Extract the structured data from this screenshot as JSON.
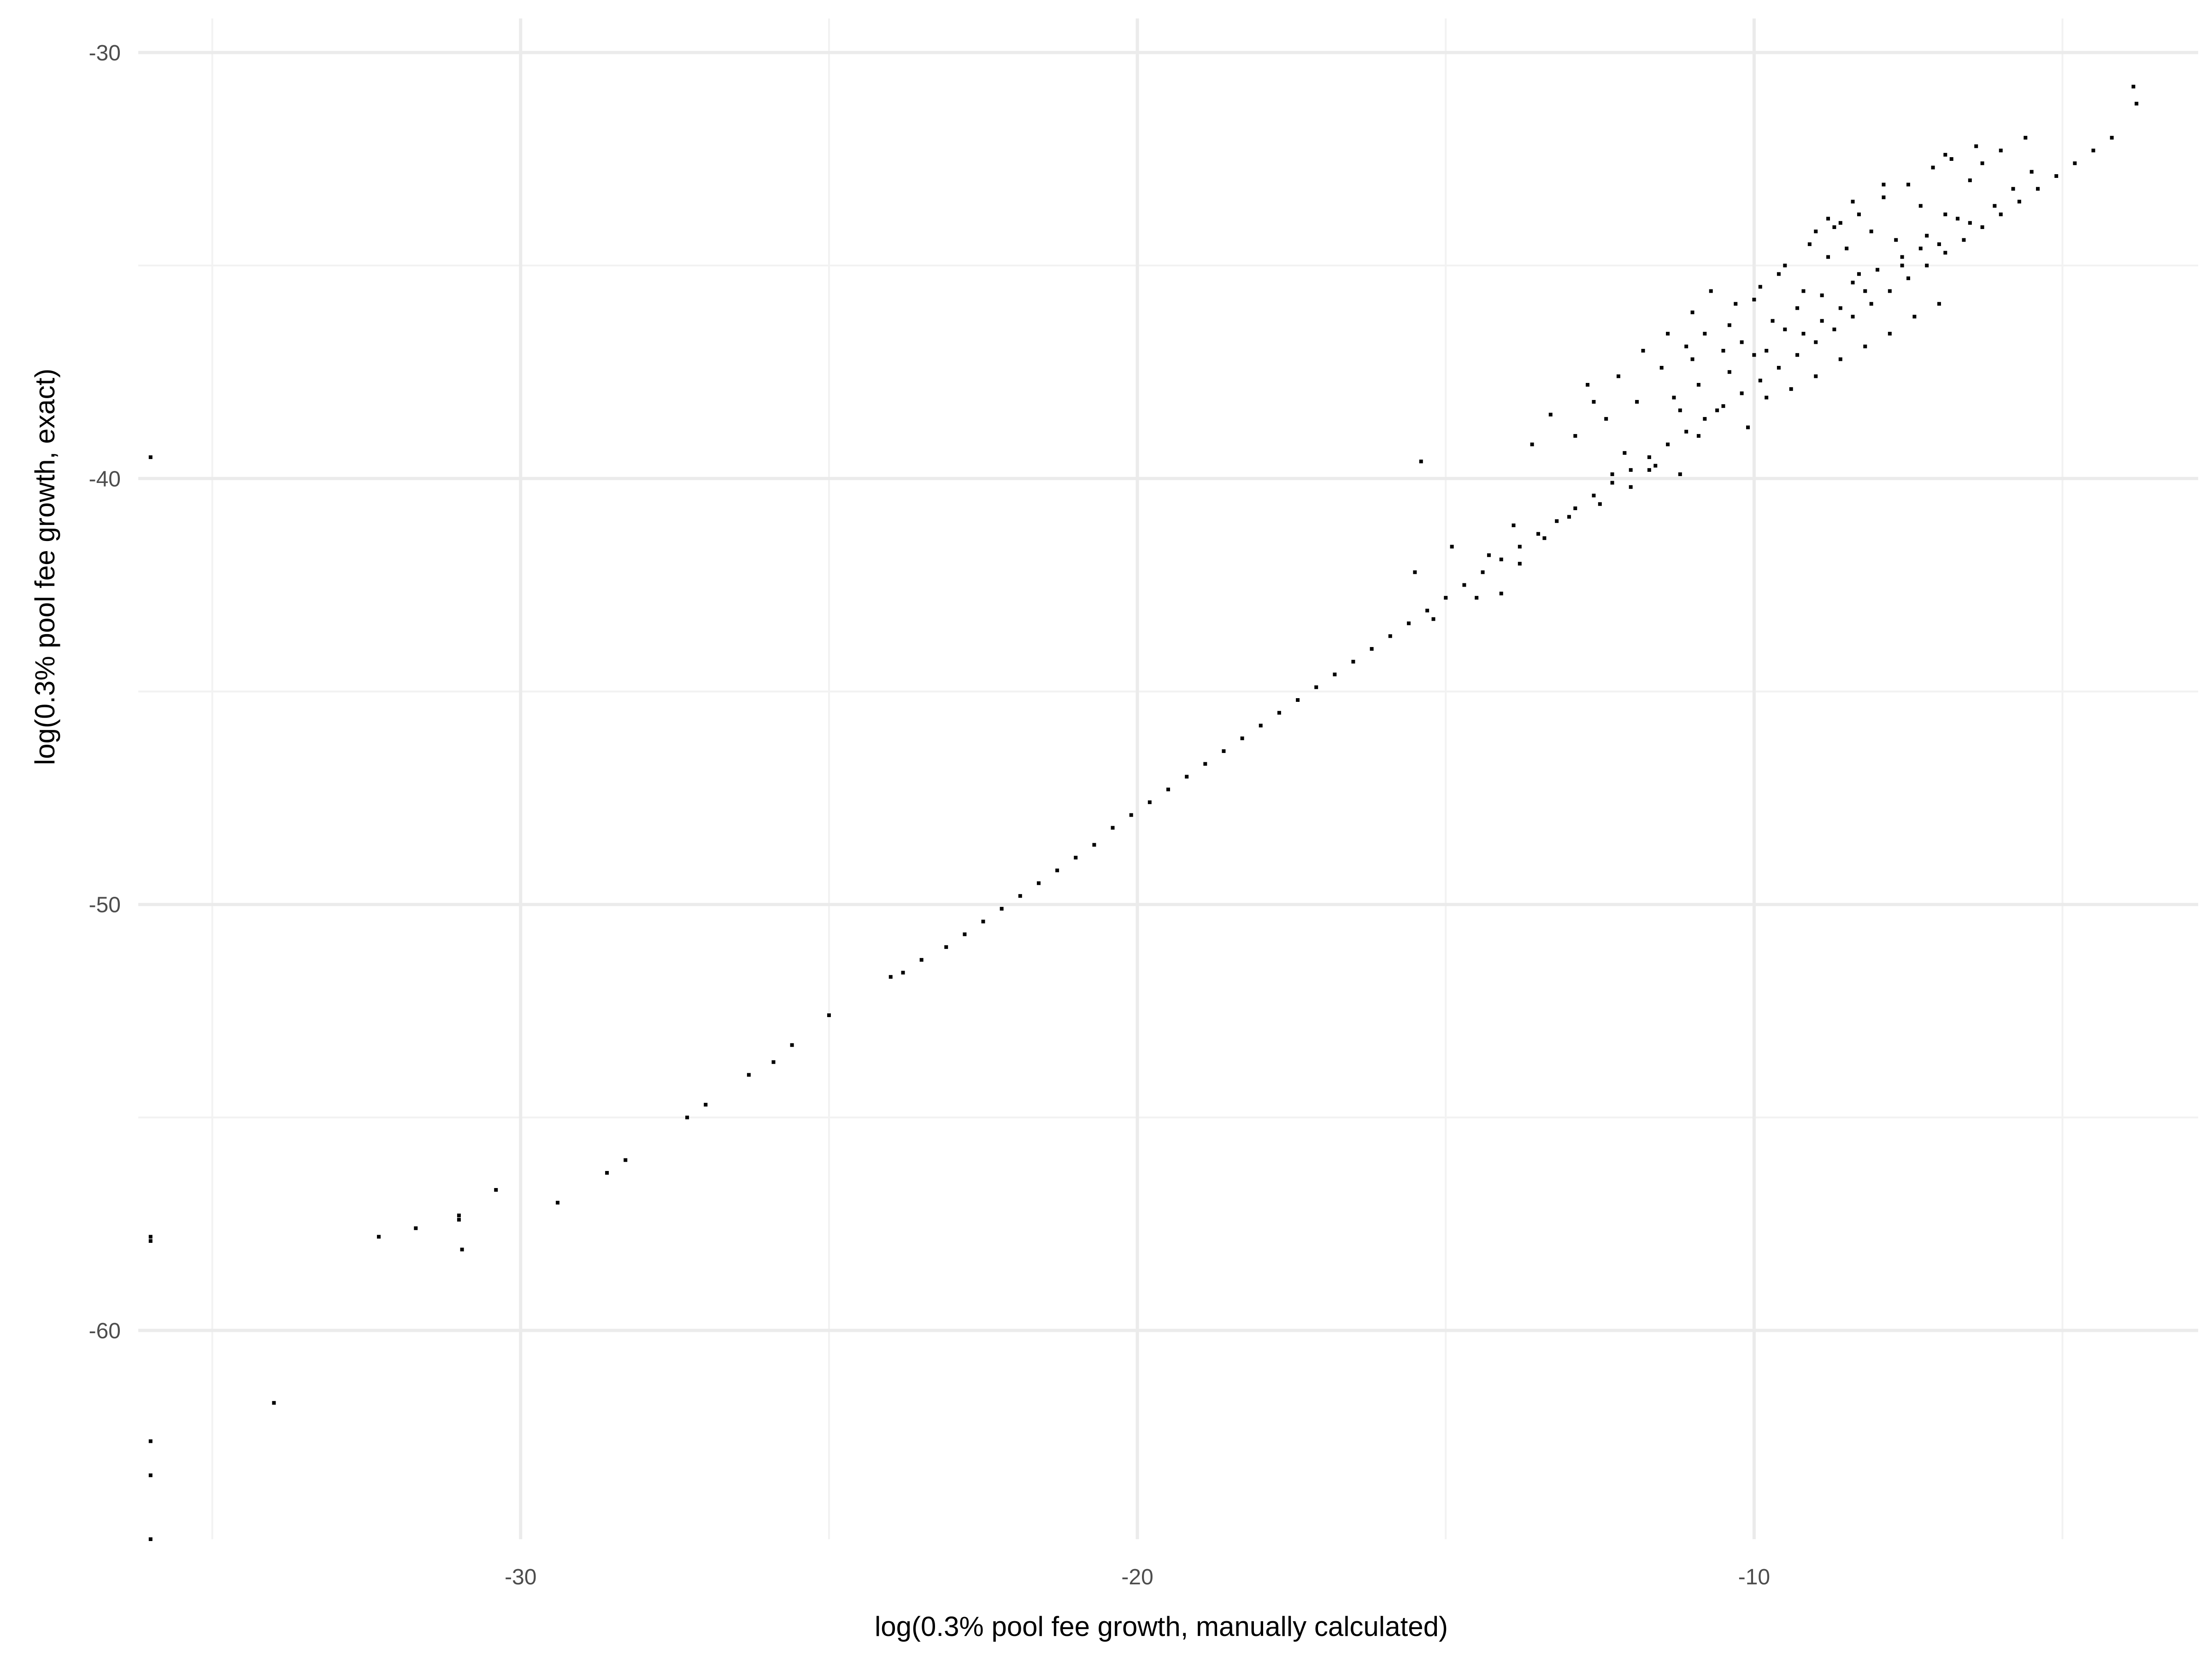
{
  "chart_data": {
    "type": "scatter",
    "title": "",
    "xlabel": "log(0.3% pool fee growth, manually calculated)",
    "ylabel": "log(0.3% pool fee growth, exact)",
    "xlim": [
      -36.2,
      -2.8
    ],
    "ylim": [
      -64.9,
      -29.2
    ],
    "x_ticks": [
      -30,
      -20,
      -10
    ],
    "x_tick_labels": [
      "-30",
      "-20",
      "-10"
    ],
    "y_ticks": [
      -30,
      -40,
      -50,
      -60
    ],
    "y_tick_labels": [
      "-30",
      "-40",
      "-50",
      "-60"
    ],
    "x_minor_ticks": [
      -35,
      -25,
      -15,
      -5
    ],
    "y_minor_ticks": [
      -35,
      -45,
      -55
    ],
    "grid": true,
    "legend": "none",
    "colors": {
      "points": "#000000",
      "grid_major": "#ebebeb",
      "grid_minor": "#f2f2f2",
      "background": "#ffffff"
    },
    "points": [
      [
        -36.0,
        -39.5
      ],
      [
        -36.0,
        -57.8
      ],
      [
        -36.0,
        -57.9
      ],
      [
        -36.0,
        -62.6
      ],
      [
        -36.0,
        -63.4
      ],
      [
        -36.0,
        -64.9
      ],
      [
        -34.0,
        -61.7
      ],
      [
        -32.3,
        -57.8
      ],
      [
        -31.7,
        -57.6
      ],
      [
        -31.0,
        -57.4
      ],
      [
        -31.0,
        -57.3
      ],
      [
        -30.95,
        -58.1
      ],
      [
        -30.4,
        -56.7
      ],
      [
        -29.4,
        -57.0
      ],
      [
        -28.6,
        -56.3
      ],
      [
        -28.3,
        -56.0
      ],
      [
        -27.3,
        -55.0
      ],
      [
        -27.0,
        -54.7
      ],
      [
        -26.3,
        -54.0
      ],
      [
        -25.9,
        -53.7
      ],
      [
        -25.6,
        -53.3
      ],
      [
        -25.0,
        -52.6
      ],
      [
        -24.0,
        -51.7
      ],
      [
        -23.8,
        -51.6
      ],
      [
        -23.5,
        -51.3
      ],
      [
        -23.1,
        -51.0
      ],
      [
        -22.8,
        -50.7
      ],
      [
        -22.5,
        -50.4
      ],
      [
        -22.2,
        -50.1
      ],
      [
        -21.9,
        -49.8
      ],
      [
        -21.6,
        -49.5
      ],
      [
        -21.3,
        -49.2
      ],
      [
        -21.0,
        -48.9
      ],
      [
        -20.7,
        -48.6
      ],
      [
        -20.4,
        -48.2
      ],
      [
        -20.1,
        -47.9
      ],
      [
        -19.8,
        -47.6
      ],
      [
        -19.5,
        -47.3
      ],
      [
        -19.2,
        -47.0
      ],
      [
        -18.9,
        -46.7
      ],
      [
        -18.6,
        -46.4
      ],
      [
        -18.3,
        -46.1
      ],
      [
        -18.0,
        -45.8
      ],
      [
        -17.7,
        -45.5
      ],
      [
        -17.4,
        -45.2
      ],
      [
        -17.1,
        -44.9
      ],
      [
        -16.8,
        -44.6
      ],
      [
        -16.5,
        -44.3
      ],
      [
        -16.2,
        -44.0
      ],
      [
        -15.9,
        -43.7
      ],
      [
        -15.6,
        -43.4
      ],
      [
        -15.3,
        -43.1
      ],
      [
        -15.0,
        -42.8
      ],
      [
        -14.7,
        -42.5
      ],
      [
        -14.4,
        -42.2
      ],
      [
        -14.1,
        -41.9
      ],
      [
        -13.8,
        -41.6
      ],
      [
        -13.5,
        -41.3
      ],
      [
        -13.2,
        -41.0
      ],
      [
        -12.9,
        -40.7
      ],
      [
        -12.6,
        -40.4
      ],
      [
        -12.3,
        -40.1
      ],
      [
        -12.0,
        -39.8
      ],
      [
        -11.7,
        -39.5
      ],
      [
        -11.4,
        -39.2
      ],
      [
        -11.1,
        -38.9
      ],
      [
        -10.8,
        -38.6
      ],
      [
        -10.5,
        -38.3
      ],
      [
        -10.2,
        -38.0
      ],
      [
        -9.9,
        -37.7
      ],
      [
        -9.6,
        -37.4
      ],
      [
        -9.3,
        -37.1
      ],
      [
        -9.0,
        -36.8
      ],
      [
        -8.7,
        -36.5
      ],
      [
        -8.4,
        -36.2
      ],
      [
        -8.1,
        -35.9
      ],
      [
        -7.8,
        -35.6
      ],
      [
        -7.5,
        -35.3
      ],
      [
        -7.2,
        -35.0
      ],
      [
        -6.9,
        -34.7
      ],
      [
        -6.6,
        -34.4
      ],
      [
        -6.3,
        -34.1
      ],
      [
        -6.0,
        -33.8
      ],
      [
        -5.7,
        -33.5
      ],
      [
        -5.4,
        -33.2
      ],
      [
        -5.1,
        -32.9
      ],
      [
        -4.8,
        -32.6
      ],
      [
        -4.5,
        -32.3
      ],
      [
        -4.2,
        -32.0
      ],
      [
        -3.85,
        -30.8
      ],
      [
        -3.8,
        -31.2
      ],
      [
        -15.4,
        -39.6
      ],
      [
        -15.5,
        -42.2
      ],
      [
        -15.2,
        -43.3
      ],
      [
        -14.5,
        -42.8
      ],
      [
        -14.1,
        -42.7
      ],
      [
        -13.4,
        -41.4
      ],
      [
        -13.8,
        -42.0
      ],
      [
        -13.3,
        -38.5
      ],
      [
        -13.6,
        -39.2
      ],
      [
        -12.7,
        -37.8
      ],
      [
        -12.4,
        -38.6
      ],
      [
        -11.9,
        -38.2
      ],
      [
        -11.5,
        -37.4
      ],
      [
        -11.0,
        -37.2
      ],
      [
        -10.8,
        -36.6
      ],
      [
        -10.4,
        -36.4
      ],
      [
        -10.0,
        -35.8
      ],
      [
        -9.6,
        -35.2
      ],
      [
        -9.2,
        -35.6
      ],
      [
        -8.8,
        -34.8
      ],
      [
        -8.5,
        -34.6
      ],
      [
        -8.1,
        -34.2
      ],
      [
        -7.7,
        -34.4
      ],
      [
        -7.3,
        -33.6
      ],
      [
        -6.9,
        -33.8
      ],
      [
        -6.5,
        -33.0
      ],
      [
        -12.1,
        -39.4
      ],
      [
        -11.7,
        -39.8
      ],
      [
        -11.2,
        -39.9
      ],
      [
        -10.9,
        -39.0
      ],
      [
        -10.6,
        -38.4
      ],
      [
        -10.1,
        -38.8
      ],
      [
        -9.8,
        -38.1
      ],
      [
        -9.4,
        -37.9
      ],
      [
        -9.0,
        -37.6
      ],
      [
        -8.6,
        -37.2
      ],
      [
        -8.2,
        -36.9
      ],
      [
        -7.8,
        -36.6
      ],
      [
        -7.4,
        -36.2
      ],
      [
        -7.0,
        -35.9
      ],
      [
        -11.0,
        -36.1
      ],
      [
        -10.7,
        -35.6
      ],
      [
        -10.3,
        -35.9
      ],
      [
        -9.9,
        -35.5
      ],
      [
        -9.5,
        -35.0
      ],
      [
        -9.1,
        -34.5
      ],
      [
        -8.7,
        -34.1
      ],
      [
        -8.3,
        -33.8
      ],
      [
        -7.9,
        -33.4
      ],
      [
        -7.5,
        -33.1
      ],
      [
        -7.1,
        -32.7
      ],
      [
        -6.8,
        -32.5
      ],
      [
        -6.4,
        -32.2
      ],
      [
        -6.0,
        -32.3
      ],
      [
        -12.9,
        -39.0
      ],
      [
        -12.6,
        -38.2
      ],
      [
        -12.2,
        -37.6
      ],
      [
        -11.8,
        -37.0
      ],
      [
        -11.4,
        -36.6
      ],
      [
        -11.1,
        -36.9
      ],
      [
        -10.5,
        -37.0
      ],
      [
        -10.2,
        -36.8
      ],
      [
        -9.7,
        -36.3
      ],
      [
        -9.3,
        -36.0
      ],
      [
        -8.9,
        -35.7
      ],
      [
        -8.4,
        -35.4
      ],
      [
        -8.0,
        -35.1
      ],
      [
        -7.6,
        -34.8
      ],
      [
        -7.2,
        -34.3
      ],
      [
        -6.7,
        -33.9
      ],
      [
        -12.0,
        -40.2
      ],
      [
        -11.6,
        -39.7
      ],
      [
        -11.3,
        -38.1
      ],
      [
        -10.9,
        -37.8
      ],
      [
        -10.4,
        -37.5
      ],
      [
        -9.8,
        -37.0
      ],
      [
        -9.2,
        -36.6
      ],
      [
        -8.6,
        -36.0
      ],
      [
        -8.2,
        -35.6
      ],
      [
        -7.6,
        -35.0
      ],
      [
        -7.0,
        -34.5
      ],
      [
        -6.5,
        -34.0
      ],
      [
        -6.1,
        -33.6
      ],
      [
        -5.8,
        -33.2
      ],
      [
        -5.5,
        -32.8
      ],
      [
        -9.0,
        -34.2
      ],
      [
        -8.8,
        -33.9
      ],
      [
        -8.6,
        -34.0
      ],
      [
        -8.4,
        -33.5
      ],
      [
        -7.9,
        -33.1
      ],
      [
        -6.9,
        -32.4
      ],
      [
        -6.3,
        -32.6
      ],
      [
        -5.6,
        -32.0
      ],
      [
        -13.0,
        -40.9
      ],
      [
        -12.5,
        -40.6
      ],
      [
        -14.9,
        -41.6
      ],
      [
        -14.3,
        -41.8
      ],
      [
        -13.9,
        -41.1
      ],
      [
        -12.3,
        -39.9
      ],
      [
        -11.2,
        -38.4
      ],
      [
        -10.0,
        -37.1
      ],
      [
        -9.5,
        -36.5
      ],
      [
        -8.9,
        -36.3
      ],
      [
        -8.3,
        -35.2
      ],
      [
        -7.3,
        -34.6
      ]
    ]
  }
}
